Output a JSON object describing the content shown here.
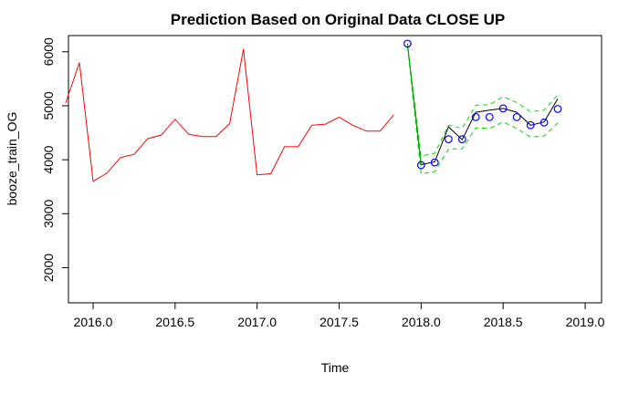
{
  "chart_data": {
    "type": "line",
    "title": "Prediction Based on Original Data CLOSE UP",
    "xlabel": "Time",
    "ylabel": "booze_train_OG",
    "xlim": [
      2015.85,
      2019.1
    ],
    "ylim": [
      1350,
      6300
    ],
    "x_ticks": [
      2016.0,
      2016.5,
      2017.0,
      2017.5,
      2018.0,
      2018.5,
      2019.0
    ],
    "x_tick_labels": [
      "2016.0",
      "2016.5",
      "2017.0",
      "2017.5",
      "2018.0",
      "2018.5",
      "2019.0"
    ],
    "y_ticks": [
      2000,
      3000,
      4000,
      5000,
      6000
    ],
    "y_tick_labels": [
      "2000",
      "3000",
      "4000",
      "5000",
      "6000"
    ],
    "grid": false,
    "series": [
      {
        "name": "",
        "color": "#ff0000",
        "style": "line",
        "x": [
          2015.833,
          2015.917,
          2016.0,
          2016.083,
          2016.167,
          2016.25,
          2016.333,
          2016.417,
          2016.5,
          2016.583,
          2016.667,
          2016.75,
          2016.833,
          2016.917,
          2017.0,
          2017.083,
          2017.167,
          2017.25,
          2017.333,
          2017.417,
          2017.5,
          2017.583,
          2017.667,
          2017.75,
          2017.833
        ],
        "values": [
          5050,
          5800,
          3600,
          3750,
          4040,
          4100,
          4390,
          4460,
          4750,
          4470,
          4430,
          4430,
          4670,
          6050,
          3720,
          3740,
          4240,
          4240,
          4640,
          4660,
          4790,
          4640,
          4530,
          4530,
          4830
        ]
      },
      {
        "name": "",
        "color": "#000000",
        "style": "line",
        "x": [
          2017.917,
          2018.0,
          2018.083,
          2018.167,
          2018.25,
          2018.333,
          2018.417,
          2018.5,
          2018.583,
          2018.667,
          2018.75,
          2018.833
        ],
        "values": [
          6150,
          3910,
          3960,
          4610,
          4370,
          4880,
          4920,
          4950,
          4880,
          4640,
          4700,
          5130
        ]
      },
      {
        "name": "",
        "color": "#00dd00",
        "style": "dashed",
        "x": [
          2017.917,
          2018.0,
          2018.083,
          2018.167,
          2018.25,
          2018.333,
          2018.417,
          2018.5,
          2018.583,
          2018.667,
          2018.75,
          2018.833
        ],
        "values": [
          6130,
          4070,
          4120,
          4640,
          4580,
          5010,
          5020,
          5170,
          5060,
          4890,
          4920,
          5200
        ]
      },
      {
        "name": "",
        "color": "#00dd00",
        "style": "dashed",
        "x": [
          2017.917,
          2018.0,
          2018.083,
          2018.167,
          2018.25,
          2018.333,
          2018.417,
          2018.5,
          2018.583,
          2018.667,
          2018.75,
          2018.833
        ],
        "values": [
          6100,
          3740,
          3780,
          4200,
          4200,
          4590,
          4580,
          4700,
          4580,
          4420,
          4440,
          4680
        ]
      },
      {
        "name": "",
        "color": "#00aa00",
        "style": "line",
        "x": [
          2017.917,
          2018.0
        ],
        "values": [
          6130,
          3910
        ]
      },
      {
        "name": "",
        "color": "#0000ff",
        "style": "points",
        "x": [
          2017.917,
          2018.0,
          2018.083,
          2018.167,
          2018.25,
          2018.333,
          2018.417,
          2018.5,
          2018.583,
          2018.667,
          2018.75,
          2018.833
        ],
        "values": [
          6150,
          3900,
          3950,
          4380,
          4380,
          4790,
          4790,
          4950,
          4790,
          4640,
          4690,
          4940
        ]
      }
    ]
  }
}
